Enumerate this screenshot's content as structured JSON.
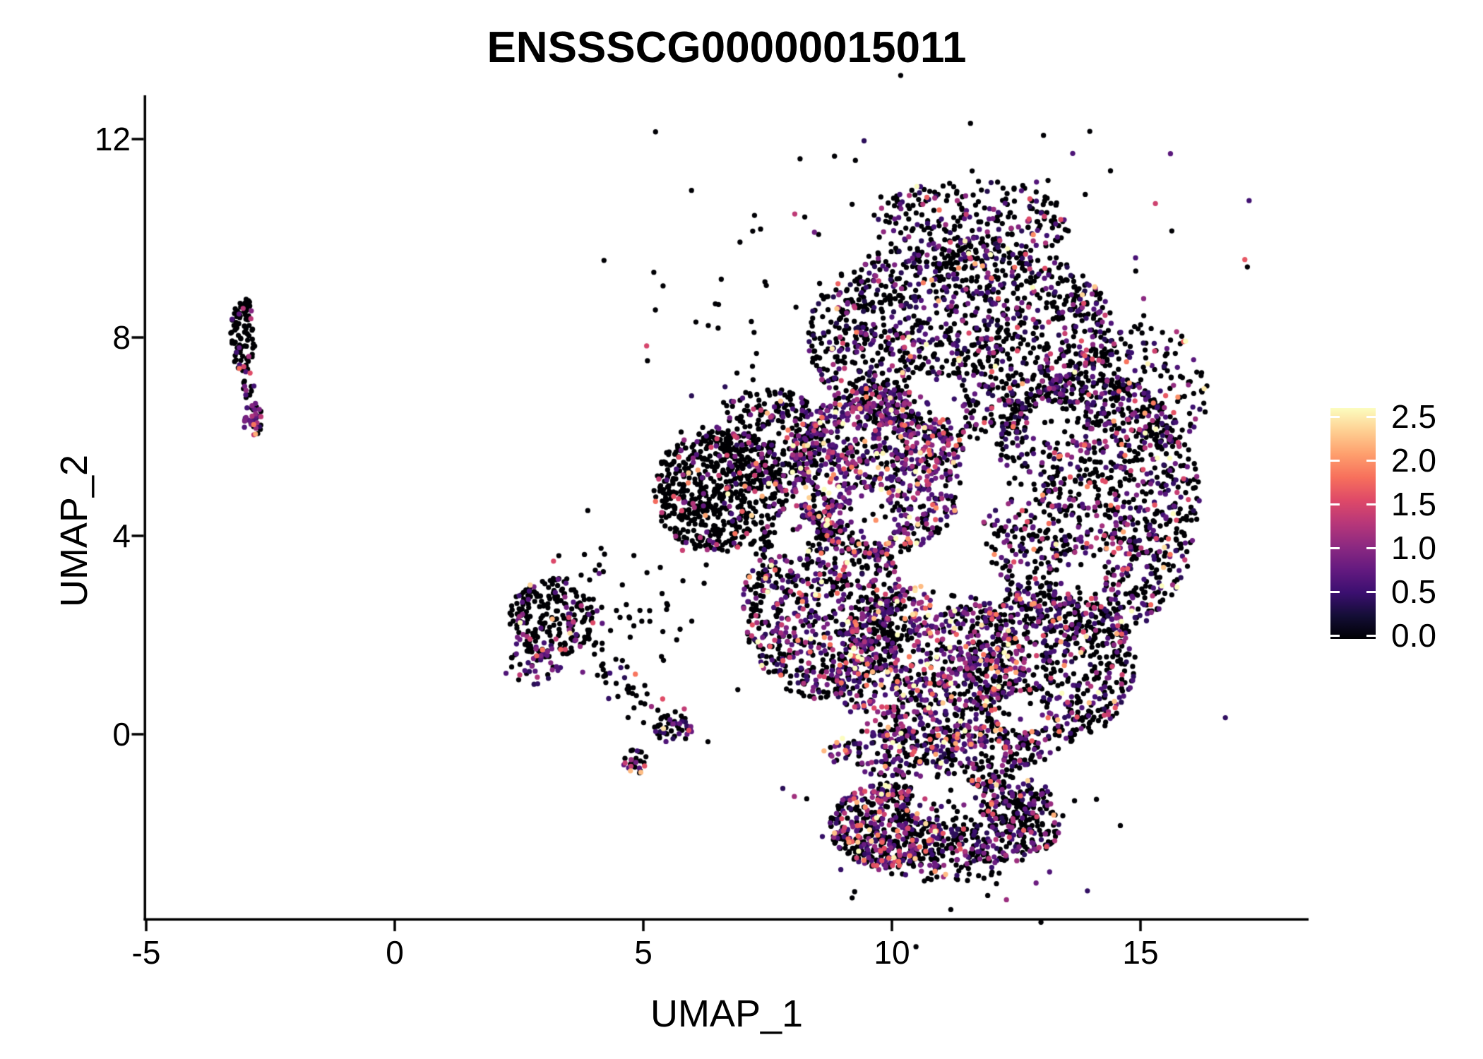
{
  "chart_data": {
    "type": "scatter",
    "title": "ENSSSCG00000015011",
    "xlabel": "UMAP_1",
    "ylabel": "UMAP_2",
    "x_ticks": [
      -5,
      0,
      5,
      10,
      15
    ],
    "x_tick_labels": [
      "-5",
      "0",
      "5",
      "10",
      "15"
    ],
    "y_ticks": [
      0,
      4,
      8,
      12
    ],
    "y_tick_labels": [
      "0",
      "4",
      "8",
      "12"
    ],
    "x_range": [
      -5.03,
      18.38
    ],
    "y_range": [
      -3.73,
      12.88
    ],
    "grid": false,
    "point_radius_px": 3.65,
    "background": "#ffffff",
    "axis_color": "#000000",
    "legend": {
      "position": "right",
      "limits": [
        0,
        2.5
      ],
      "ticks": [
        0.0,
        0.5,
        1.0,
        1.5,
        2.0,
        2.5
      ],
      "labels": [
        "0.0",
        "0.5",
        "1.0",
        "1.5",
        "2.0",
        "2.5"
      ],
      "colormap": "magma",
      "colormap_stops": [
        [
          0.0,
          "#000004"
        ],
        [
          0.1,
          "#140e36"
        ],
        [
          0.2,
          "#3b0f70"
        ],
        [
          0.3,
          "#641a80"
        ],
        [
          0.4,
          "#8c2981"
        ],
        [
          0.5,
          "#b73779"
        ],
        [
          0.6,
          "#de4968"
        ],
        [
          0.7,
          "#f7705c"
        ],
        [
          0.8,
          "#fe9f6d"
        ],
        [
          0.9,
          "#fecf92"
        ],
        [
          1.0,
          "#fcfdbf"
        ]
      ]
    },
    "generator": {
      "seed": 42,
      "void_keep_prob": 0.12,
      "clusters": [
        {
          "n": 95,
          "cx": -3.05,
          "cy": 8.05,
          "rx": 0.25,
          "ry": 0.78,
          "sh": "u",
          "p0": 0.88,
          "sc": 0.55,
          "vm": 0.5
        },
        {
          "n": 14,
          "cx": -2.95,
          "cy": 7.05,
          "rx": 0.12,
          "ry": 0.3,
          "sh": "u",
          "p0": 0.75
        },
        {
          "n": 42,
          "cx": -2.85,
          "cy": 6.35,
          "rx": 0.2,
          "ry": 0.33,
          "sh": "u",
          "p0": 0.4,
          "sc": 0.55,
          "vm": 0.4
        },
        {
          "n": 230,
          "cx": 3.15,
          "cy": 2.35,
          "rx": 0.85,
          "ry": 0.8,
          "sh": "u",
          "p0": 0.8,
          "sc": 0.6,
          "vm": 0.5
        },
        {
          "n": 45,
          "cx": 2.75,
          "cy": 1.45,
          "rx": 0.6,
          "ry": 0.45,
          "sh": "u",
          "p0": 0.35,
          "sc": 0.45,
          "vm": 0.35
        },
        {
          "n": 26,
          "cx": 4.35,
          "cy": 2.2,
          "rx": 0.6,
          "ry": 0.5,
          "sh": "g",
          "p0": 0.85
        },
        {
          "n": 40,
          "x1": 3.9,
          "y1": 1.5,
          "x2": 5.5,
          "y2": 0.35,
          "j": 0.22,
          "sh": "l",
          "p0": 0.7,
          "sc": 0.5
        },
        {
          "n": 48,
          "cx": 5.6,
          "cy": 0.1,
          "rx": 0.38,
          "ry": 0.3,
          "sh": "u",
          "p0": 0.5,
          "sc": 0.5
        },
        {
          "n": 26,
          "cx": 4.82,
          "cy": -0.52,
          "rx": 0.24,
          "ry": 0.3,
          "sh": "u",
          "p0": 0.4,
          "sc": 0.7,
          "vm": 0.5
        },
        {
          "n": 30,
          "cx": 4.6,
          "cy": 3.1,
          "rx": 1.2,
          "ry": 0.7,
          "sh": "g",
          "p0": 0.9
        },
        {
          "n": 25,
          "cx": 6.7,
          "cy": 7.3,
          "rx": 0.8,
          "ry": 0.9,
          "sh": "g",
          "p0": 0.85
        },
        {
          "n": 1450,
          "cx": 11.4,
          "cy": 8.0,
          "rx": 3.1,
          "ry": 2.05,
          "sh": "u",
          "p0": 0.63,
          "sc": 0.5,
          "vm": 0.3
        },
        {
          "n": 260,
          "cx": 11.6,
          "cy": 10.3,
          "rx": 2.0,
          "ry": 0.9,
          "sh": "u",
          "p0": 0.68
        },
        {
          "n": 70,
          "cx": 11.5,
          "cy": 9.6,
          "rx": 2.9,
          "ry": 1.5,
          "sh": "g",
          "p0": 0.8
        },
        {
          "n": 1250,
          "cx": 14.0,
          "cy": 4.6,
          "rx": 2.2,
          "ry": 2.7,
          "sh": "u",
          "p0": 0.62,
          "sc": 0.5
        },
        {
          "n": 200,
          "cx": 15.1,
          "cy": 7.0,
          "rx": 1.25,
          "ry": 1.3,
          "sh": "u",
          "p0": 0.66
        },
        {
          "n": 620,
          "cx": 6.55,
          "cy": 4.9,
          "rx": 1.35,
          "ry": 1.25,
          "sh": "u",
          "p0": 0.84,
          "sc": 0.55,
          "vm": 0.5
        },
        {
          "n": 280,
          "cx": 7.5,
          "cy": 6.0,
          "rx": 1.1,
          "ry": 1.0,
          "sh": "u",
          "p0": 0.72
        },
        {
          "n": 1050,
          "cx": 9.7,
          "cy": 5.3,
          "rx": 1.8,
          "ry": 1.75,
          "sh": "u",
          "p0": 0.42,
          "sc": 0.6,
          "vm": 0.4
        },
        {
          "n": 850,
          "cx": 8.6,
          "cy": 2.6,
          "rx": 1.6,
          "ry": 1.9,
          "sh": "u",
          "p0": 0.6,
          "sc": 0.55
        },
        {
          "n": 900,
          "cx": 10.8,
          "cy": 1.3,
          "rx": 1.9,
          "ry": 1.7,
          "sh": "u",
          "p0": 0.45,
          "sc": 0.62,
          "vm": 0.4
        },
        {
          "n": 650,
          "cx": 13.2,
          "cy": 1.4,
          "rx": 1.7,
          "ry": 1.6,
          "sh": "u",
          "p0": 0.63
        },
        {
          "n": 320,
          "cx": 10.9,
          "cy": -0.35,
          "rx": 2.3,
          "ry": 0.55,
          "sh": "u",
          "p0": 0.52,
          "sc": 0.6
        },
        {
          "n": 520,
          "cx": 9.9,
          "cy": -1.85,
          "rx": 1.15,
          "ry": 0.85,
          "sh": "u",
          "p0": 0.55,
          "sc": 0.62,
          "vm": 0.4
        },
        {
          "n": 470,
          "cx": 12.15,
          "cy": -1.7,
          "rx": 1.3,
          "ry": 0.9,
          "sh": "u",
          "p0": 0.6,
          "sc": 0.5
        },
        {
          "n": 110,
          "cx": 11.0,
          "cy": -2.55,
          "rx": 1.4,
          "ry": 0.45,
          "sh": "u",
          "p0": 0.62
        },
        {
          "n": 60,
          "cx": 11.0,
          "cy": -1.5,
          "rx": 1.9,
          "ry": 1.1,
          "sh": "g",
          "p0": 0.78
        }
      ],
      "voids": [
        {
          "x": 9.55,
          "y": 4.35,
          "rx": 0.55,
          "ry": 0.5
        },
        {
          "x": 12.0,
          "y": 5.0,
          "rx": 0.85,
          "ry": 0.6
        },
        {
          "x": 11.2,
          "y": 3.05,
          "rx": 0.6,
          "ry": 0.5
        },
        {
          "x": 13.8,
          "y": 3.2,
          "rx": 0.5,
          "ry": 0.45
        },
        {
          "x": 10.9,
          "y": 6.8,
          "rx": 0.55,
          "ry": 0.45
        },
        {
          "x": 12.6,
          "y": 0.45,
          "rx": 0.5,
          "ry": 0.4
        },
        {
          "x": 11.1,
          "y": -1.35,
          "rx": 0.75,
          "ry": 0.5
        },
        {
          "x": 8.0,
          "y": 4.0,
          "rx": 0.45,
          "ry": 0.4
        },
        {
          "x": 13.2,
          "y": 6.3,
          "rx": 0.5,
          "ry": 0.4
        }
      ],
      "outliers": [
        {
          "x": 15.3,
          "y": 10.7,
          "v": 1.4
        },
        {
          "x": 16.3,
          "y": 6.5,
          "v": 0.0
        },
        {
          "x": 4.15,
          "y": 3.75,
          "v": 0.0
        },
        {
          "x": 6.3,
          "y": -0.15,
          "v": 0.0
        },
        {
          "x": 9.2,
          "y": -3.3,
          "v": 0.0
        },
        {
          "x": 12.9,
          "y": -3.0,
          "v": 0.8
        },
        {
          "x": 3.3,
          "y": 3.6,
          "v": 0.0
        },
        {
          "x": 6.9,
          "y": 0.9,
          "v": 0.0
        }
      ]
    }
  }
}
